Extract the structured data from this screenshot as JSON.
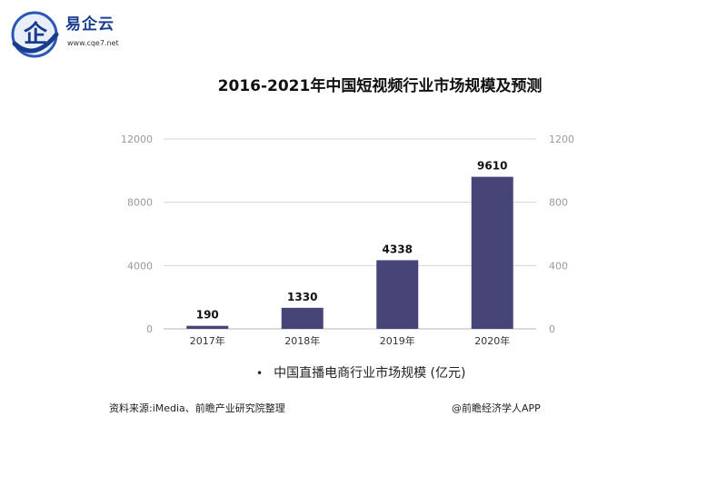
{
  "logo": {
    "brand": "易企云",
    "url": "www.cqe7.net",
    "icon": "logo-emblem"
  },
  "chart_data": {
    "type": "bar",
    "title": "2016-2021年中国短视频行业市场规模及预测",
    "categories": [
      "2017年",
      "2018年",
      "2019年",
      "2020年"
    ],
    "series": [
      {
        "name": "中国直播电商行业市场规模 (亿元)",
        "values": [
          190,
          1330,
          4338,
          9610
        ]
      }
    ],
    "y_left": {
      "ticks": [
        "0",
        "4000",
        "8000",
        "12000"
      ],
      "range": [
        0,
        12000
      ]
    },
    "y_right": {
      "ticks": [
        "0",
        "400",
        "800",
        "1200"
      ],
      "range": [
        0,
        1200
      ]
    },
    "bar_color": "#474577",
    "legend_position": "bottom"
  },
  "footer": {
    "source": "资料来源:iMedia、前瞻产业研究院整理",
    "credit": "@前瞻经济学人APP"
  }
}
